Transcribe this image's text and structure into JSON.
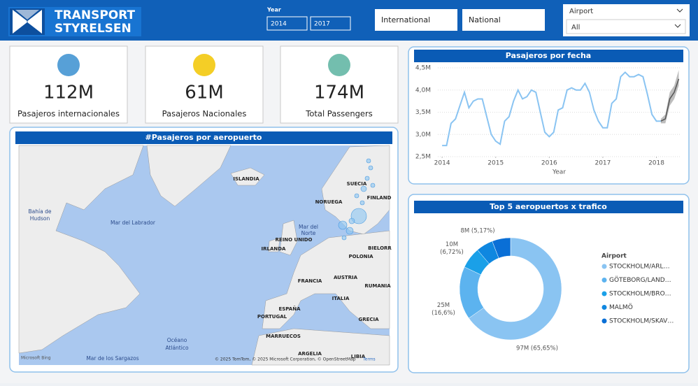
{
  "header": {
    "logo": [
      "TRANSPORT",
      "STYRELSEN"
    ],
    "year_slicer": {
      "label": "Year",
      "from": "2014",
      "to": "2017"
    },
    "buttons": [
      "International",
      "National"
    ],
    "airport_slicer": {
      "label": "Airport",
      "value": "All"
    }
  },
  "kpis": [
    {
      "value": "112M",
      "label": "Pasajeros internacionales"
    },
    {
      "value": "61M",
      "label": "Pasajeros Nacionales"
    },
    {
      "value": "174M",
      "label": "Total Passengers"
    }
  ],
  "map": {
    "title": "#Pasajeros por aeropuerto",
    "labels": [
      "ISLANDIA",
      "NORUEGA",
      "SUECIA",
      "FINLAND",
      "Bahía de",
      "Hudson",
      "Mar del Labrador",
      "Mar del",
      "Norte",
      "REINO UNIDO",
      "IRLANDA",
      "BIELORR",
      "POLONIA",
      "FRANCIA",
      "AUSTRIA",
      "RUMANIA",
      "ITALIA",
      "ESPAÑA",
      "PORTUGAL",
      "GRECIA",
      "MARRUECOS",
      "ARGELIA",
      "LIBIA",
      "Océano",
      "Atlántico",
      "Mar de los Sargazos"
    ],
    "attribution": "© 2025 TomTom, © 2025 Microsoft Corporation, © OpenStreetMap",
    "terms": "Terms",
    "brand": "Microsoft Bing"
  },
  "chart_data": [
    {
      "type": "line",
      "title": "Pasajeros por fecha",
      "x_label": "Year",
      "color": "#8ac4f2",
      "grid": true,
      "x": [
        2014,
        2014.083,
        2014.167,
        2014.25,
        2014.333,
        2014.417,
        2014.5,
        2014.583,
        2014.667,
        2014.75,
        2014.833,
        2014.917,
        2015,
        2015.083,
        2015.167,
        2015.25,
        2015.333,
        2015.417,
        2015.5,
        2015.583,
        2015.667,
        2015.75,
        2015.833,
        2015.917,
        2016,
        2016.083,
        2016.167,
        2016.25,
        2016.333,
        2016.417,
        2016.5,
        2016.583,
        2016.667,
        2016.75,
        2016.833,
        2016.917,
        2017,
        2017.083,
        2017.167,
        2017.25,
        2017.333,
        2017.417,
        2017.5,
        2017.583,
        2017.667,
        2017.75,
        2017.833,
        2017.917,
        2018,
        2018.083
      ],
      "values": [
        2.75,
        2.75,
        3.25,
        3.35,
        3.65,
        3.95,
        3.6,
        3.75,
        3.8,
        3.8,
        3.4,
        3.0,
        2.85,
        2.78,
        3.3,
        3.4,
        3.75,
        4.0,
        3.8,
        3.85,
        4.0,
        3.95,
        3.5,
        3.05,
        2.95,
        3.05,
        3.55,
        3.6,
        4.0,
        4.05,
        4.0,
        4.0,
        4.15,
        3.95,
        3.55,
        3.3,
        3.15,
        3.15,
        3.7,
        3.8,
        4.3,
        4.4,
        4.3,
        4.3,
        4.35,
        4.3,
        3.9,
        3.45,
        3.3,
        3.3
      ],
      "forecast": {
        "color": "#555555",
        "band_color": "#bdbdbd",
        "x": [
          2018.083,
          2018.167,
          2018.25,
          2018.333,
          2018.417
        ],
        "values": [
          3.3,
          3.35,
          3.8,
          3.95,
          4.25
        ],
        "lower": [
          3.25,
          3.25,
          3.65,
          3.8,
          4.1
        ],
        "upper": [
          3.35,
          3.45,
          3.95,
          4.1,
          4.45
        ]
      },
      "xlim": [
        2013.92,
        2018.45
      ],
      "xticks": [
        2014,
        2015,
        2016,
        2017,
        2018
      ],
      "ylim": [
        2.5,
        4.5
      ],
      "yticks": [
        {
          "value": 2.5,
          "label": "2,5M"
        },
        {
          "value": 3,
          "label": "3,0M"
        },
        {
          "value": 3.5,
          "label": "3,5M"
        },
        {
          "value": 4,
          "label": "4,0M"
        },
        {
          "value": 4.5,
          "label": "4,5M"
        }
      ]
    },
    {
      "type": "donut",
      "title": "Top 5 aeropuertos x trafico",
      "legend_title": "Airport",
      "categories": [
        "STOCKHOLM/ARL…",
        "GÖTEBORG/LAND…",
        "STOCKHOLM/BRO…",
        "MALMÖ",
        "STOCKHOLM/SKAV…"
      ],
      "values": [
        97,
        25,
        10,
        8,
        8.7
      ],
      "value_labels": [
        "97M (65,65%)",
        "25M (16,6%)",
        "10M (6,72%)",
        "8M (5,17%)",
        null
      ],
      "colors": [
        "#8ac4f2",
        "#5cb3ef",
        "#1aa0e8",
        "#0f87e0",
        "#0a6fd6"
      ]
    }
  ]
}
